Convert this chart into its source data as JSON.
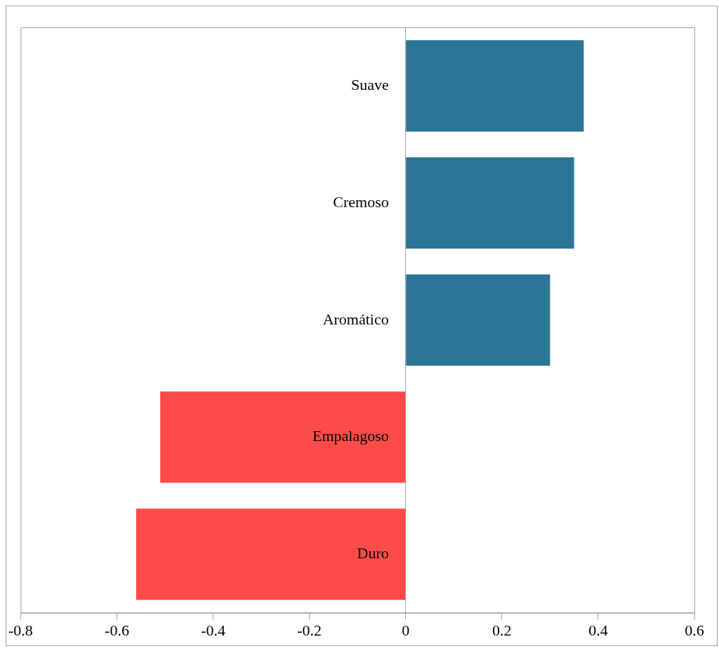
{
  "chart_data": {
    "type": "bar",
    "orientation": "horizontal",
    "categories": [
      "Suave",
      "Cremoso",
      "Aromático",
      "Empalagoso",
      "Duro"
    ],
    "values": [
      0.37,
      0.35,
      0.3,
      -0.51,
      -0.56
    ],
    "colors": [
      "#2b7597",
      "#2b7597",
      "#2b7597",
      "#ff4b47",
      "#ff4b47"
    ],
    "xlim": [
      -0.8,
      0.6
    ],
    "xticks": [
      -0.8,
      -0.6,
      -0.4,
      -0.2,
      0,
      0.2,
      0.4,
      0.6
    ],
    "grid": false,
    "legend": false
  }
}
